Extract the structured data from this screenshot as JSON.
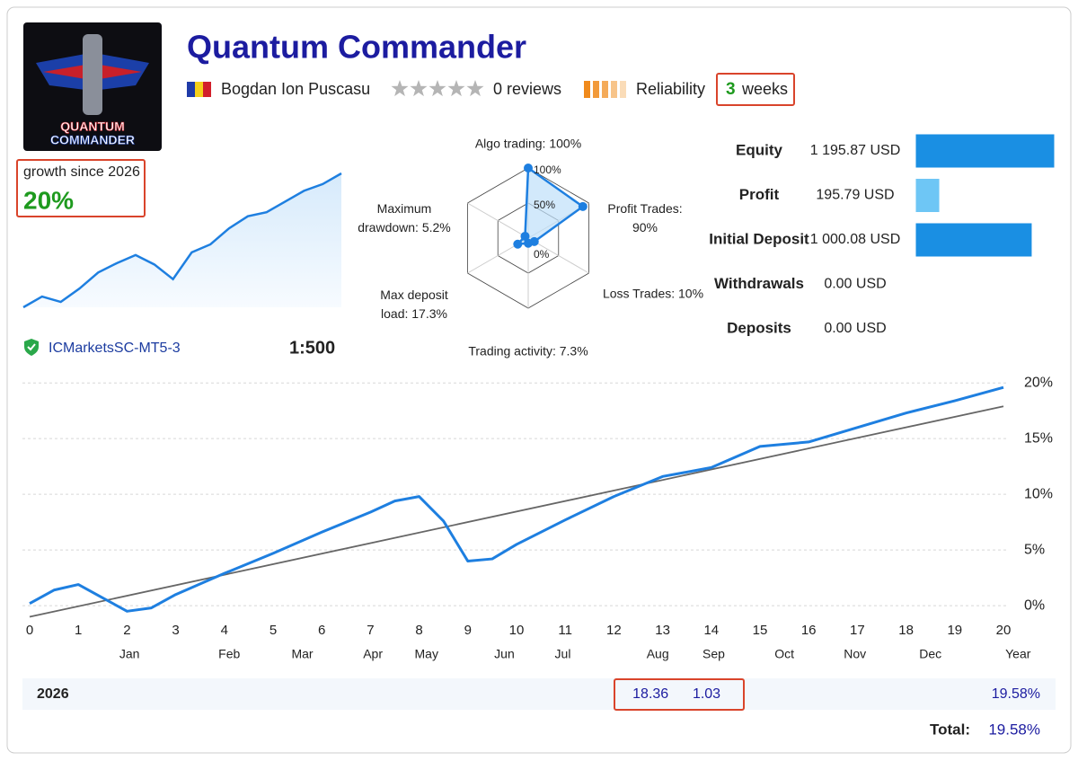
{
  "header": {
    "title": "Quantum Commander",
    "author": "Bogdan Ion Puscasu",
    "reviews": "0 reviews",
    "reliability": "Reliability",
    "age_value": "3",
    "age_unit": "weeks"
  },
  "logo": {
    "line1": "QUANTUM",
    "line2": "COMMANDER"
  },
  "growth": {
    "label": "growth since 2026",
    "value": "20%",
    "type": "area",
    "color": "#1e7fe0",
    "values": [
      0,
      1.6,
      0.8,
      2.8,
      5.2,
      6.6,
      7.8,
      6.4,
      4.2,
      8.2,
      9.4,
      11.8,
      13.6,
      14.2,
      15.8,
      17.4,
      18.4,
      20.0
    ]
  },
  "account": {
    "server": "ICMarketsSC-MT5-3",
    "leverage": "1:500"
  },
  "radar": {
    "type": "radar",
    "color": "#1e7fe0",
    "labels": [
      "Algo trading: 100%",
      "Profit Trades: 90%",
      "Loss Trades: 10%",
      "Trading activity: 7.3%",
      "Max deposit load: 17.3%",
      "Maximum drawdown: 5.2%"
    ],
    "values": [
      100,
      90,
      10,
      7.3,
      17.3,
      5.2
    ],
    "rlim": [
      0,
      100
    ],
    "rticks": [
      {
        "value": 100,
        "label": "100%"
      },
      {
        "value": 50,
        "label": "50%"
      },
      {
        "value": 0,
        "label": "0%"
      }
    ]
  },
  "balance": {
    "type": "bar",
    "categories": [
      "Equity",
      "Profit",
      "Initial Deposit",
      "Withdrawals",
      "Deposits"
    ],
    "values": [
      1195.87,
      195.79,
      1000.08,
      0,
      0
    ],
    "value_labels": [
      "1 195.87 USD",
      "195.79 USD",
      "1 000.08 USD",
      "0.00 USD",
      "0.00 USD"
    ],
    "colors": [
      "#1a8fe3",
      "#6ec6f5",
      "#1a8fe3",
      "#1a8fe3",
      "#1a8fe3"
    ]
  },
  "growth_chart": {
    "type": "line",
    "grid": true,
    "x": [
      0,
      0.5,
      1,
      1.5,
      2,
      2.5,
      3,
      4,
      5,
      6,
      7,
      7.5,
      8,
      8.5,
      9,
      9.5,
      10,
      11,
      12,
      13,
      14,
      15,
      16,
      17,
      18,
      19,
      20
    ],
    "series": [
      {
        "color": "#1e7fe0",
        "values": [
          0.2,
          1.4,
          1.9,
          0.7,
          -0.5,
          -0.2,
          1.0,
          2.9,
          4.7,
          6.6,
          8.4,
          9.4,
          9.8,
          7.6,
          4.0,
          4.2,
          5.5,
          7.7,
          9.8,
          11.6,
          12.4,
          14.3,
          14.7,
          16.0,
          17.3,
          18.4,
          19.6
        ]
      }
    ],
    "trend": {
      "color": "#666666",
      "x": [
        0,
        20
      ],
      "values": [
        -1.0,
        17.9
      ]
    },
    "xlim": [
      0,
      20
    ],
    "ylim": [
      -1.2,
      20.5
    ],
    "xticks": [
      0,
      1,
      2,
      3,
      4,
      5,
      6,
      7,
      8,
      9,
      10,
      11,
      12,
      13,
      14,
      15,
      16,
      17,
      18,
      19,
      20
    ],
    "yticks": [
      {
        "value": 0,
        "label": "0%"
      },
      {
        "value": 5,
        "label": "5%"
      },
      {
        "value": 10,
        "label": "10%"
      },
      {
        "value": 15,
        "label": "15%"
      },
      {
        "value": 20,
        "label": "20%"
      }
    ],
    "month_ticks": [
      {
        "value": 2.05,
        "label": "Jan"
      },
      {
        "value": 4.1,
        "label": "Feb"
      },
      {
        "value": 5.6,
        "label": "Mar"
      },
      {
        "value": 7.05,
        "label": "Apr"
      },
      {
        "value": 8.15,
        "label": "May"
      },
      {
        "value": 9.75,
        "label": "Jun"
      },
      {
        "value": 10.95,
        "label": "Jul"
      },
      {
        "value": 12.9,
        "label": "Aug"
      },
      {
        "value": 14.05,
        "label": "Sep"
      },
      {
        "value": 15.5,
        "label": "Oct"
      },
      {
        "value": 16.95,
        "label": "Nov"
      },
      {
        "value": 18.5,
        "label": "Dec"
      },
      {
        "value": 20.3,
        "label": "Year"
      }
    ]
  },
  "table": {
    "year": "2026",
    "months": [
      null,
      null,
      null,
      null,
      null,
      null,
      null,
      18.36,
      1.03,
      null,
      null,
      null
    ],
    "year_total": "19.58%",
    "total_label": "Total:",
    "total": "19.58%"
  }
}
